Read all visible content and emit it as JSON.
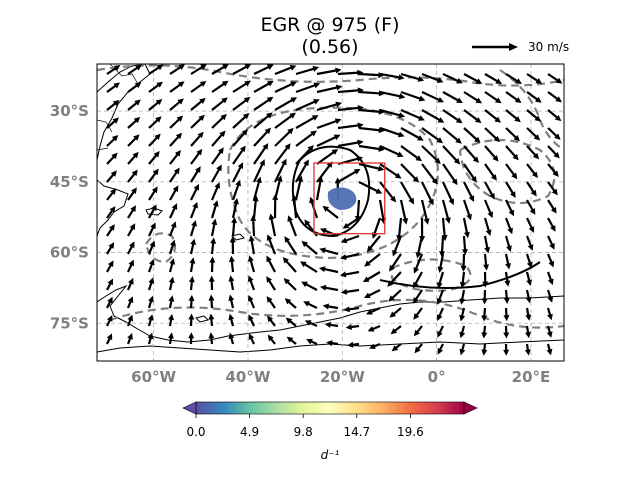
{
  "chart_data": {
    "type": "map",
    "title_line1": "EGR @ 975 (F)",
    "title_line2": "(0.56)",
    "quiver_key_label": "30 m/s",
    "x_ticks": [
      {
        "value": -60,
        "label": "60°W"
      },
      {
        "value": -40,
        "label": "40°W"
      },
      {
        "value": -20,
        "label": "20°W"
      },
      {
        "value": 0,
        "label": "0°"
      },
      {
        "value": 20,
        "label": "20°E"
      }
    ],
    "y_ticks": [
      {
        "value": -30,
        "label": "30°S"
      },
      {
        "value": -45,
        "label": "45°S"
      },
      {
        "value": -60,
        "label": "60°S"
      },
      {
        "value": -75,
        "label": "75°S"
      }
    ],
    "lon_range": [
      -72,
      27
    ],
    "lat_range": [
      -83,
      -20
    ],
    "grid": true,
    "highlight_box": {
      "lon": [
        -26,
        -11
      ],
      "lat": [
        -41,
        -56
      ],
      "color": "#e03030"
    },
    "colorbar": {
      "label": "d⁻¹",
      "ticks": [
        "0.0",
        "4.9",
        "9.8",
        "14.7",
        "19.6"
      ],
      "tick_values": [
        0.0,
        4.9,
        9.8,
        14.7,
        19.6
      ],
      "range": [
        0,
        24.5
      ],
      "colormap": "Spectral_r",
      "extend": "both"
    },
    "vortex_center": {
      "lon": -18.5,
      "lat": -48
    }
  }
}
